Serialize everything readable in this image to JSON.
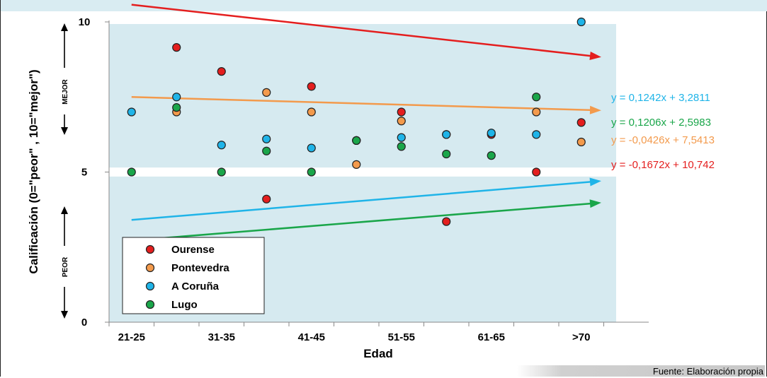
{
  "chart_data": {
    "type": "scatter",
    "xlabel": "Edad",
    "ylabel": "Calificación (0=\"peor\" , 10=\"mejor\")",
    "categories": [
      "21-25",
      "31-35",
      "41-45",
      "51-55",
      "61-65",
      ">70"
    ],
    "x_range": [
      1,
      12
    ],
    "ylim": [
      0,
      10
    ],
    "y_ticks": [
      0,
      5,
      10
    ],
    "grid": false,
    "legend_position": "bottom-left",
    "annotations": {
      "upper": "MEJOR",
      "lower": "PEOR"
    },
    "series": [
      {
        "name": "Ourense",
        "color": "#e41e1e",
        "points": [
          [
            2,
            9.15
          ],
          [
            3,
            8.35
          ],
          [
            4,
            4.1
          ],
          [
            5,
            7.85
          ],
          [
            6,
            6.05
          ],
          [
            7,
            7.0
          ],
          [
            8,
            3.35
          ],
          [
            9,
            6.25
          ],
          [
            10,
            5.0
          ],
          [
            11,
            6.65
          ]
        ],
        "trend": {
          "equation": "y = -0,1672x + 10,742",
          "slope": -0.1672,
          "intercept": 10.742
        }
      },
      {
        "name": "Pontevedra",
        "color": "#f39a4c",
        "points": [
          [
            2,
            7.0
          ],
          [
            4,
            7.65
          ],
          [
            5,
            7.0
          ],
          [
            6,
            5.25
          ],
          [
            7,
            6.7
          ],
          [
            8,
            6.25
          ],
          [
            10,
            7.0
          ],
          [
            11,
            6.0
          ]
        ],
        "trend": {
          "equation": "y = -0,0426x + 7,5413",
          "slope": -0.0426,
          "intercept": 7.5413
        }
      },
      {
        "name": "A Coruña",
        "color": "#1fb4e8",
        "points": [
          [
            1,
            7.0
          ],
          [
            2,
            7.5
          ],
          [
            3,
            5.9
          ],
          [
            4,
            6.1
          ],
          [
            5,
            5.8
          ],
          [
            6,
            6.05
          ],
          [
            7,
            6.15
          ],
          [
            8,
            6.25
          ],
          [
            9,
            6.3
          ],
          [
            10,
            6.25
          ],
          [
            11,
            10.0
          ]
        ],
        "trend": {
          "equation": "y = 0,1242x + 3,2811",
          "slope": 0.1242,
          "intercept": 3.2811
        }
      },
      {
        "name": "Lugo",
        "color": "#1aa64a",
        "points": [
          [
            1,
            5.0
          ],
          [
            2,
            7.15
          ],
          [
            3,
            5.0
          ],
          [
            4,
            5.7
          ],
          [
            5,
            5.0
          ],
          [
            6,
            6.05
          ],
          [
            7,
            5.85
          ],
          [
            8,
            5.6
          ],
          [
            9,
            5.55
          ],
          [
            10,
            7.5
          ]
        ],
        "trend": {
          "equation": "y = 0,1206x + 2,5983",
          "slope": 0.1206,
          "intercept": 2.5983
        }
      }
    ]
  },
  "source": "Fuente: Elaboración propia"
}
